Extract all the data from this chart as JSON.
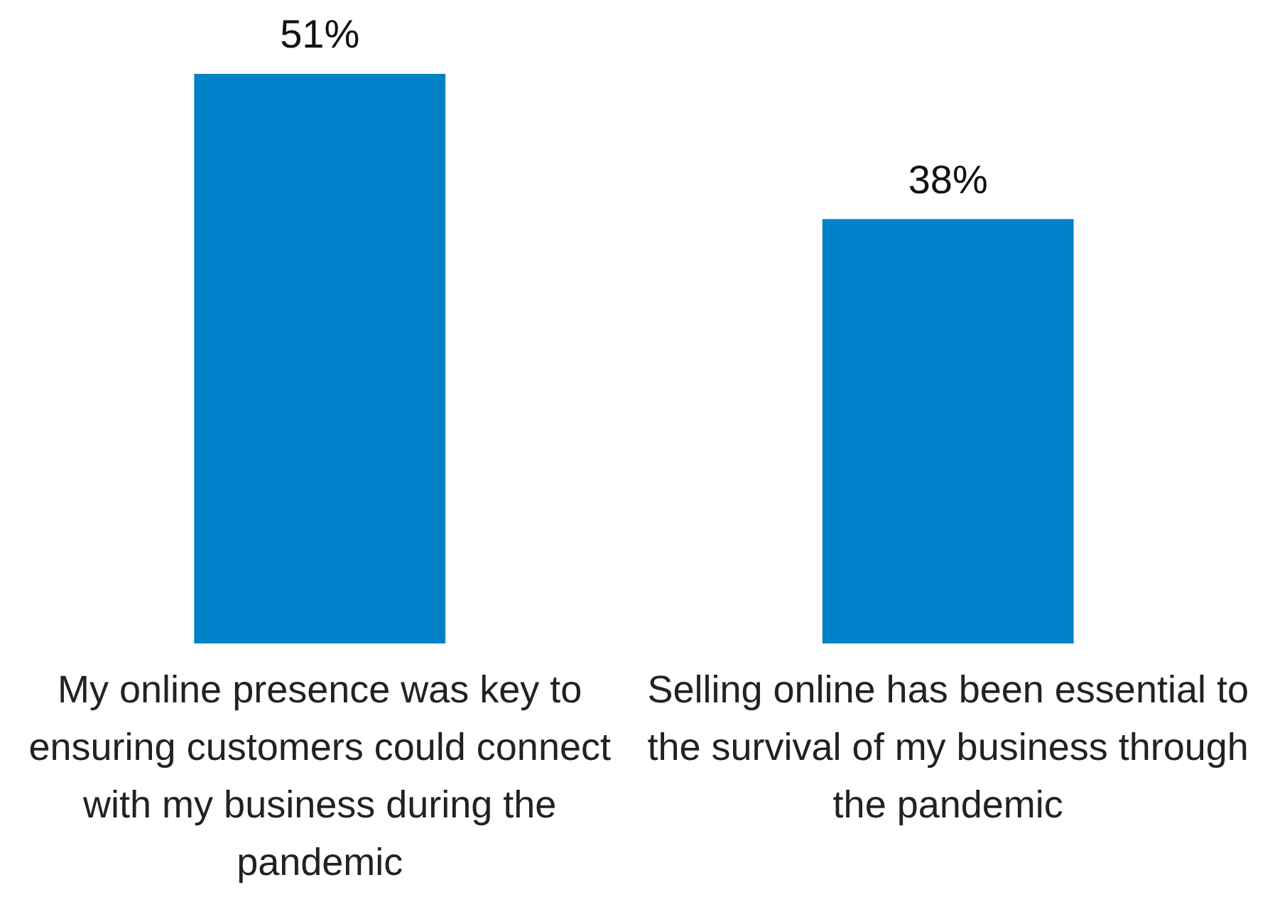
{
  "chart_data": {
    "type": "bar",
    "categories": [
      "My online presence was key to ensuring customers could connect with my business during the pandemic",
      "Selling online has been essential to the survival of my business through the pandemic"
    ],
    "values": [
      51,
      38
    ],
    "color": "#0081c8",
    "value_labels": [
      "51%",
      "38%"
    ],
    "legend": false,
    "grid": false
  }
}
